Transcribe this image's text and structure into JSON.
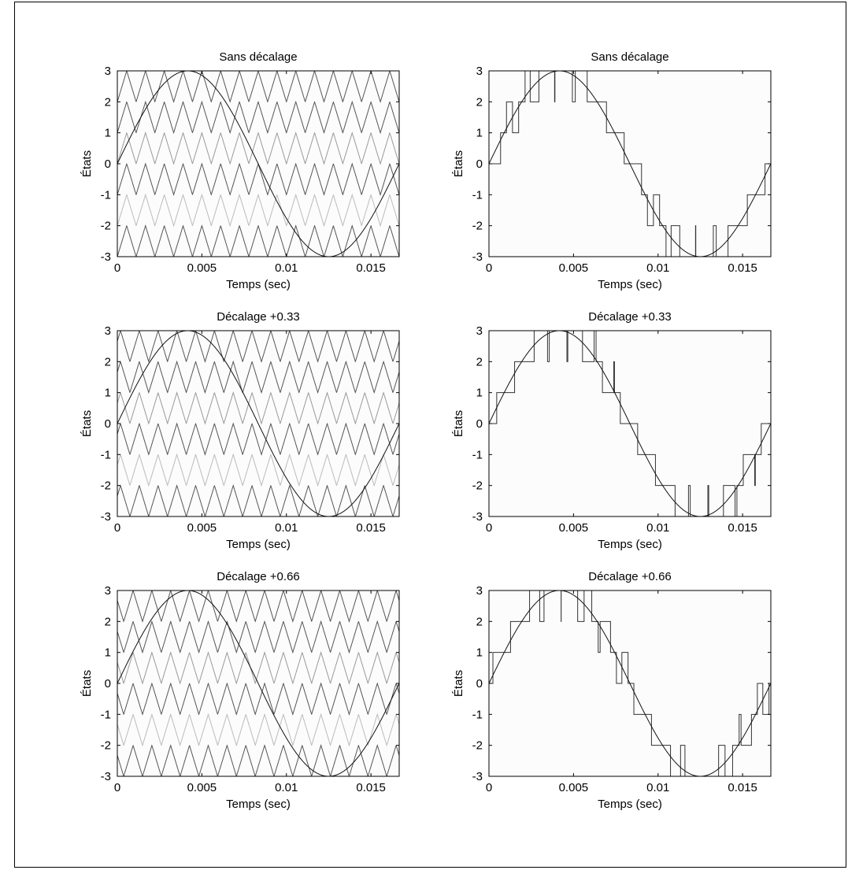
{
  "chart_data": [
    {
      "type": "line",
      "panel": "left-top",
      "title": "Sans décalage",
      "xlabel": "Temps (sec)",
      "ylabel": "États",
      "xlim": [
        0,
        0.01667
      ],
      "ylim": [
        -3,
        3
      ],
      "xticks": [
        "0",
        "0.005",
        "0.01",
        "0.015"
      ],
      "xtick_values": [
        0,
        0.005,
        0.01,
        0.015
      ],
      "yticks": [
        "3",
        "2",
        "1",
        "0",
        "-1",
        "-2",
        "-3"
      ],
      "ytick_values": [
        3,
        2,
        1,
        0,
        -1,
        -2,
        -3
      ],
      "sine": {
        "amplitude": 3,
        "frequency_hz": 60
      },
      "carrier": {
        "frequency_hz": 900,
        "offset": 0,
        "colors": [
          "#555555",
          "#555555",
          "#999999",
          "#555555",
          "#bbbbbb",
          "#555555"
        ]
      }
    },
    {
      "type": "line",
      "panel": "right-top",
      "title": "Sans décalage",
      "xlabel": "Temps (sec)",
      "ylabel": "États",
      "xlim": [
        0,
        0.01667
      ],
      "ylim": [
        -3,
        3
      ],
      "xticks": [
        "0",
        "0.005",
        "0.01",
        "0.015"
      ],
      "xtick_values": [
        0,
        0.005,
        0.01,
        0.015
      ],
      "yticks": [
        "3",
        "2",
        "1",
        "0",
        "-1",
        "-2",
        "-3"
      ],
      "ytick_values": [
        3,
        2,
        1,
        0,
        -1,
        -2,
        -3
      ],
      "sine": {
        "amplitude": 3,
        "frequency_hz": 60
      },
      "staircase": {
        "carrier_hz": 900,
        "offset": 0
      }
    },
    {
      "type": "line",
      "panel": "left-middle",
      "title": "Décalage +0.33",
      "xlabel": "Temps (sec)",
      "ylabel": "États",
      "xlim": [
        0,
        0.01667
      ],
      "ylim": [
        -3,
        3
      ],
      "xticks": [
        "0",
        "0.005",
        "0.01",
        "0.015"
      ],
      "xtick_values": [
        0,
        0.005,
        0.01,
        0.015
      ],
      "yticks": [
        "3",
        "2",
        "1",
        "0",
        "-1",
        "-2",
        "-3"
      ],
      "ytick_values": [
        3,
        2,
        1,
        0,
        -1,
        -2,
        -3
      ],
      "sine": {
        "amplitude": 3,
        "frequency_hz": 60
      },
      "carrier": {
        "frequency_hz": 900,
        "offset": 0.33,
        "colors": [
          "#555555",
          "#555555",
          "#999999",
          "#555555",
          "#bbbbbb",
          "#555555"
        ]
      }
    },
    {
      "type": "line",
      "panel": "right-middle",
      "title": "Décalage +0.33",
      "xlabel": "Temps (sec)",
      "ylabel": "États",
      "xlim": [
        0,
        0.01667
      ],
      "ylim": [
        -3,
        3
      ],
      "xticks": [
        "0",
        "0.005",
        "0.01",
        "0.015"
      ],
      "xtick_values": [
        0,
        0.005,
        0.01,
        0.015
      ],
      "yticks": [
        "3",
        "2",
        "1",
        "0",
        "-1",
        "-2",
        "-3"
      ],
      "ytick_values": [
        3,
        2,
        1,
        0,
        -1,
        -2,
        -3
      ],
      "sine": {
        "amplitude": 3,
        "frequency_hz": 60
      },
      "staircase": {
        "carrier_hz": 900,
        "offset": 0.33
      }
    },
    {
      "type": "line",
      "panel": "left-bottom",
      "title": "Décalage +0.66",
      "xlabel": "Temps (sec)",
      "ylabel": "États",
      "xlim": [
        0,
        0.01667
      ],
      "ylim": [
        -3,
        3
      ],
      "xticks": [
        "0",
        "0.005",
        "0.01",
        "0.015"
      ],
      "xtick_values": [
        0,
        0.005,
        0.01,
        0.015
      ],
      "yticks": [
        "3",
        "2",
        "1",
        "0",
        "-1",
        "-2",
        "-3"
      ],
      "ytick_values": [
        3,
        2,
        1,
        0,
        -1,
        -2,
        -3
      ],
      "sine": {
        "amplitude": 3,
        "frequency_hz": 60
      },
      "carrier": {
        "frequency_hz": 900,
        "offset": 0.66,
        "colors": [
          "#555555",
          "#555555",
          "#999999",
          "#555555",
          "#bbbbbb",
          "#555555"
        ]
      }
    },
    {
      "type": "line",
      "panel": "right-bottom",
      "title": "Décalage +0.66",
      "xlabel": "Temps (sec)",
      "ylabel": "États",
      "xlim": [
        0,
        0.01667
      ],
      "ylim": [
        -3,
        3
      ],
      "xticks": [
        "0",
        "0.005",
        "0.01",
        "0.015"
      ],
      "xtick_values": [
        0,
        0.005,
        0.01,
        0.015
      ],
      "yticks": [
        "3",
        "2",
        "1",
        "0",
        "-1",
        "-2",
        "-3"
      ],
      "ytick_values": [
        3,
        2,
        1,
        0,
        -1,
        -2,
        -3
      ],
      "sine": {
        "amplitude": 3,
        "frequency_hz": 60
      },
      "staircase": {
        "carrier_hz": 900,
        "offset": 0.66
      }
    }
  ]
}
